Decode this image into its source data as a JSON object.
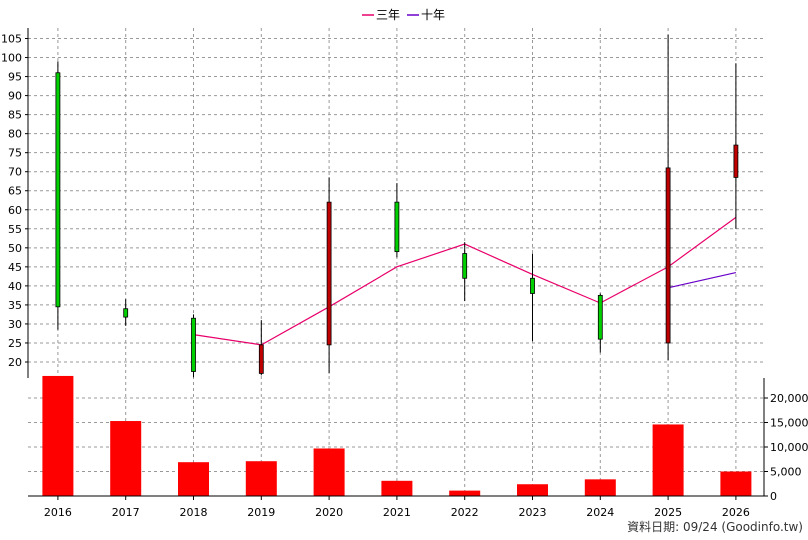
{
  "legend": [
    {
      "label": "三年",
      "color": "#e8006a"
    },
    {
      "label": "十年",
      "color": "#6a00c8"
    }
  ],
  "footer": "資料日期: 09/24 (Goodinfo.tw)",
  "chart_data": {
    "type": "candlestick",
    "categories": [
      "2016",
      "2017",
      "2018",
      "2019",
      "2020",
      "2021",
      "2022",
      "2023",
      "2024",
      "2025",
      "2026"
    ],
    "price_axis": {
      "ylim": [
        15,
        107
      ],
      "ticks": [
        20,
        25,
        30,
        35,
        40,
        45,
        50,
        55,
        60,
        65,
        70,
        75,
        80,
        85,
        90,
        95,
        100,
        105
      ],
      "tick_labels": [
        "20",
        "25",
        "30",
        "35",
        "40",
        "45",
        "50",
        "55",
        "60",
        "65",
        "70",
        "75",
        "80",
        "85",
        "90",
        "95",
        "100",
        "105"
      ]
    },
    "volume_axis": {
      "ylim": [
        0,
        25000
      ],
      "ticks": [
        0,
        5000,
        10000,
        15000,
        20000
      ],
      "tick_labels": [
        "0",
        "5,000",
        "10,000",
        "15,000",
        "20,000"
      ]
    },
    "candles": [
      {
        "open": 34.5,
        "close": 96.0,
        "high": 99.0,
        "low": 28.5,
        "direction": "up"
      },
      {
        "open": 31.8,
        "close": 34.0,
        "high": 36.5,
        "low": 29.5,
        "direction": "up"
      },
      {
        "open": 17.5,
        "close": 31.5,
        "high": 32.5,
        "low": 16.0,
        "direction": "up"
      },
      {
        "open": 24.5,
        "close": 17.0,
        "high": 31.0,
        "low": 16.5,
        "direction": "down"
      },
      {
        "open": 62.0,
        "close": 24.5,
        "high": 68.5,
        "low": 17.0,
        "direction": "down"
      },
      {
        "open": 49.0,
        "close": 62.0,
        "high": 67.0,
        "low": 47.5,
        "direction": "up"
      },
      {
        "open": 42.0,
        "close": 48.5,
        "high": 51.5,
        "low": 36.0,
        "direction": "up"
      },
      {
        "open": 38.0,
        "close": 42.0,
        "high": 48.5,
        "low": 25.5,
        "direction": "up"
      },
      {
        "open": 26.0,
        "close": 37.5,
        "high": 38.0,
        "low": 22.5,
        "direction": "up"
      },
      {
        "open": 71.0,
        "close": 25.0,
        "high": 106.0,
        "low": 20.5,
        "direction": "down"
      },
      {
        "open": 77.0,
        "close": 68.5,
        "high": 98.5,
        "low": 55.0,
        "direction": "down"
      }
    ],
    "series": [
      {
        "name": "三年",
        "values": [
          null,
          null,
          27.2,
          24.5,
          34.5,
          45.0,
          51.0,
          43.0,
          35.5,
          45.0,
          58.0
        ]
      },
      {
        "name": "十年",
        "values": [
          null,
          null,
          null,
          null,
          null,
          null,
          null,
          null,
          null,
          39.5,
          43.5
        ]
      }
    ],
    "volume": [
      24500,
      15300,
      6900,
      7100,
      9700,
      3100,
      1100,
      2400,
      3400,
      14600,
      5000
    ],
    "colors": {
      "up": "#00d000",
      "down": "#c00000",
      "volume": "#ff0000"
    },
    "grid": true,
    "legend_position": "top-center"
  }
}
